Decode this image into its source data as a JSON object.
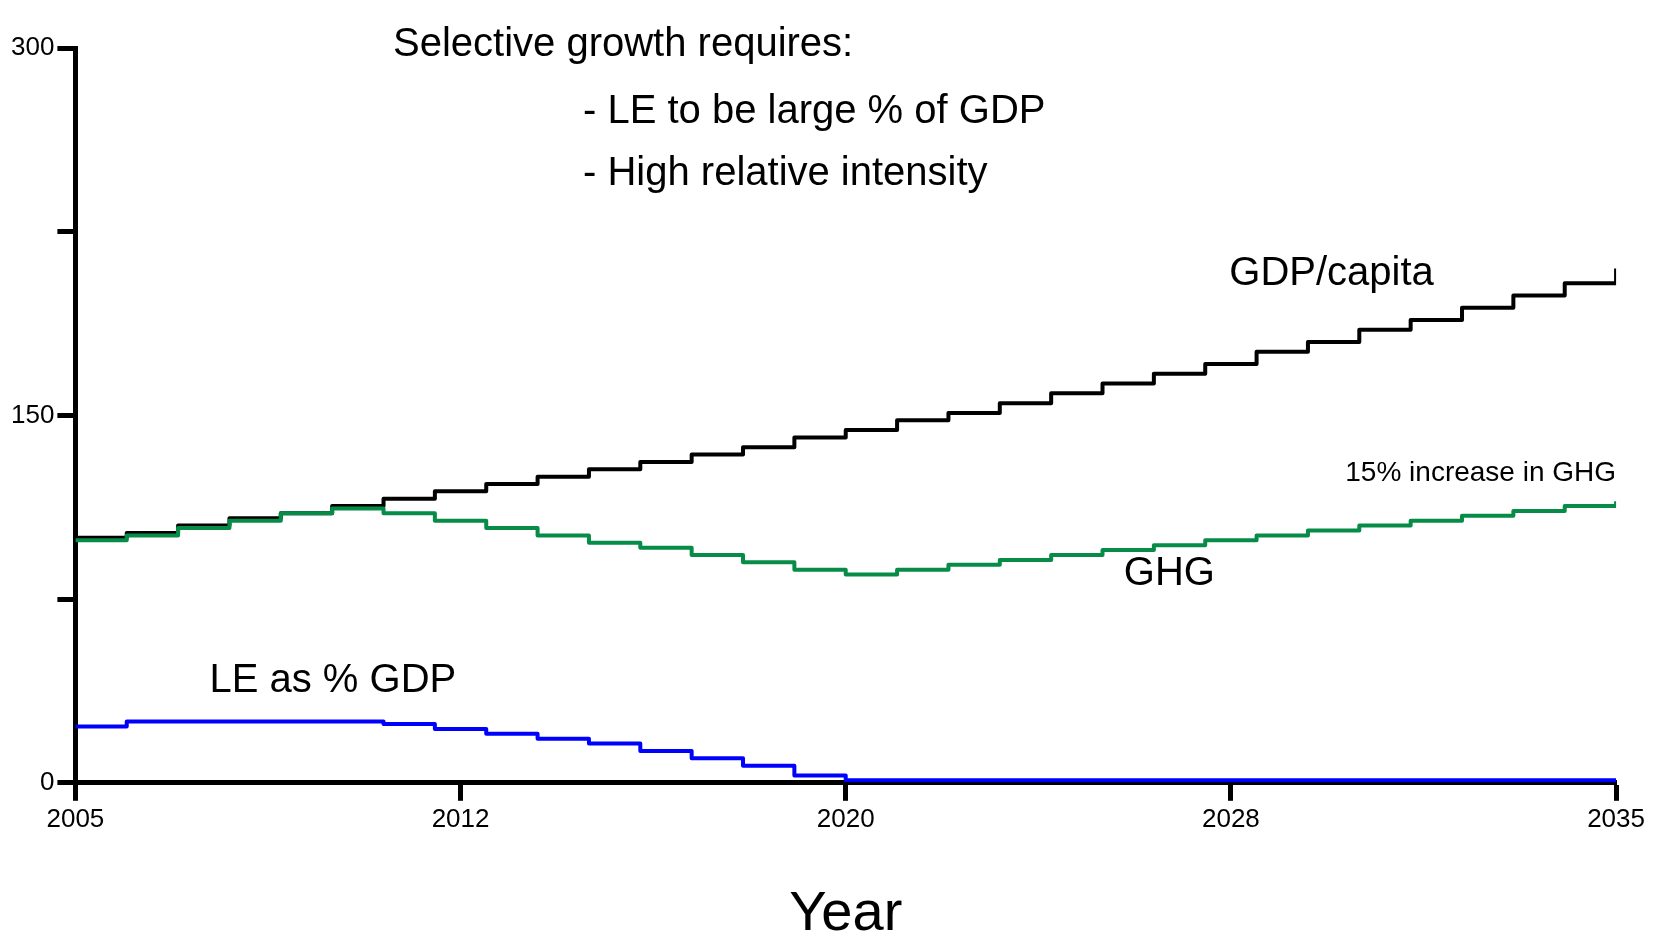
{
  "chart_data": {
    "type": "step",
    "title": "Selective growth requires:",
    "xlabel": "Year",
    "annotations": [
      "- LE to be large % of GDP",
      "- High relative intensity",
      {
        "text": "15% increase in GHG",
        "x": 2035,
        "y": 115
      }
    ],
    "x": [
      2005,
      2006,
      2007,
      2008,
      2009,
      2010,
      2011,
      2012,
      2013,
      2014,
      2015,
      2016,
      2017,
      2018,
      2019,
      2020,
      2021,
      2022,
      2023,
      2024,
      2025,
      2026,
      2027,
      2028,
      2029,
      2030,
      2031,
      2032,
      2033,
      2034,
      2035
    ],
    "series": [
      {
        "name": "GDP/capita",
        "color": "#000000",
        "values": [
          100,
          102,
          105,
          108,
          110,
          113,
          116,
          119,
          122,
          125,
          128,
          131,
          134,
          137,
          141,
          144,
          148,
          151,
          155,
          159,
          163,
          167,
          171,
          176,
          180,
          185,
          189,
          194,
          199,
          204,
          210
        ]
      },
      {
        "name": "GHG",
        "color": "#078c47",
        "values": [
          99,
          101,
          104,
          107,
          110,
          112,
          110,
          107,
          104,
          101,
          98,
          96,
          93,
          90,
          87,
          85,
          87,
          89,
          91,
          93,
          95,
          97,
          99,
          101,
          103,
          105,
          107,
          109,
          111,
          113,
          115
        ]
      },
      {
        "name": "LE as % GDP",
        "color": "#0000ff",
        "values": [
          23,
          25,
          25,
          25,
          25,
          25,
          24,
          22,
          20,
          18,
          16,
          13,
          10,
          7,
          3,
          1,
          1,
          1,
          1,
          1,
          1,
          1,
          1,
          1,
          1,
          1,
          1,
          1,
          1,
          1,
          1
        ]
      }
    ],
    "xlim": [
      2005,
      2035
    ],
    "xticks": [
      2005,
      {
        "value": 2012.5,
        "label": "2012"
      },
      2020,
      {
        "value": 2027.5,
        "label": "2028"
      },
      2035
    ],
    "ylim": [
      0,
      300
    ],
    "yticks": [
      0,
      {
        "value": 75,
        "label": null
      },
      150,
      {
        "value": 225,
        "label": null
      },
      300
    ],
    "grid": false,
    "legend": false,
    "marker": "none",
    "line_style": "solid"
  }
}
